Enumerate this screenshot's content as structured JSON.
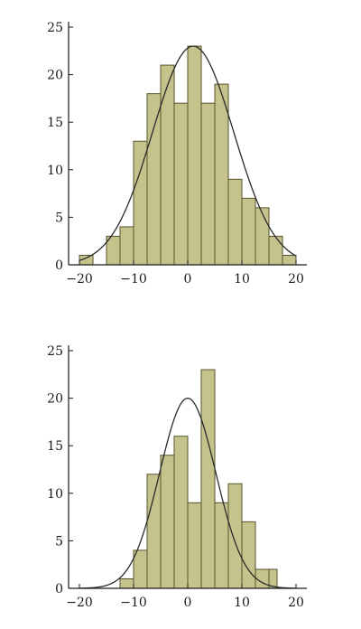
{
  "chart_data": [
    {
      "type": "bar",
      "subtype": "histogram-with-normal-fit",
      "title": "",
      "xlabel": "",
      "ylabel": "",
      "xlim": [
        -22,
        22
      ],
      "ylim": [
        0,
        25
      ],
      "xticks": [
        -20,
        -10,
        0,
        10,
        20
      ],
      "yticks": [
        0,
        5,
        10,
        15,
        20,
        25
      ],
      "xtick_labels": [
        "−20",
        "−10",
        "0",
        "10",
        "20"
      ],
      "ytick_labels": [
        "0",
        "5",
        "10",
        "15",
        "20",
        "25"
      ],
      "bin_edges": [
        -20,
        -17.5,
        -15,
        -12.5,
        -10,
        -7.5,
        -5,
        -2.5,
        0,
        2.5,
        5,
        7.5,
        10,
        12.5,
        15,
        17.5,
        20
      ],
      "values": [
        1,
        0,
        3,
        4,
        13,
        18,
        21,
        17,
        23,
        17,
        19,
        9,
        7,
        6,
        3,
        1
      ],
      "fit_curve": {
        "distribution": "normal",
        "mean": 1,
        "sd": 7.5,
        "peak": 23
      },
      "grid": false,
      "colors": {
        "bar_fill": "#c5c38c",
        "bar_edge": "#57532e",
        "curve": "#2a2a2a"
      }
    },
    {
      "type": "bar",
      "subtype": "histogram-with-normal-fit",
      "title": "",
      "xlabel": "",
      "ylabel": "",
      "xlim": [
        -22,
        22
      ],
      "ylim": [
        0,
        25
      ],
      "xticks": [
        -20,
        -10,
        0,
        10,
        20
      ],
      "yticks": [
        0,
        5,
        10,
        15,
        20,
        25
      ],
      "xtick_labels": [
        "−20",
        "−10",
        "0",
        "10",
        "20"
      ],
      "ytick_labels": [
        "0",
        "5",
        "10",
        "15",
        "20",
        "25"
      ],
      "bin_edges": [
        -12.5,
        -10,
        -7.5,
        -5,
        -2.5,
        0,
        2.5,
        5,
        7.5,
        10,
        12.5,
        15,
        17.5
      ],
      "values": [
        1,
        4,
        12,
        14,
        16,
        9,
        23,
        9,
        11,
        7,
        2,
        0
      ],
      "fit_curve": {
        "distribution": "normal",
        "mean": 0,
        "sd": 5.2,
        "peak": 20
      },
      "extra_bins": [
        {
          "x0": 15,
          "x1": 16.5,
          "value": 2
        }
      ],
      "grid": false,
      "colors": {
        "bar_fill": "#c5c38c",
        "bar_edge": "#57532e",
        "curve": "#2a2a2a"
      }
    }
  ]
}
